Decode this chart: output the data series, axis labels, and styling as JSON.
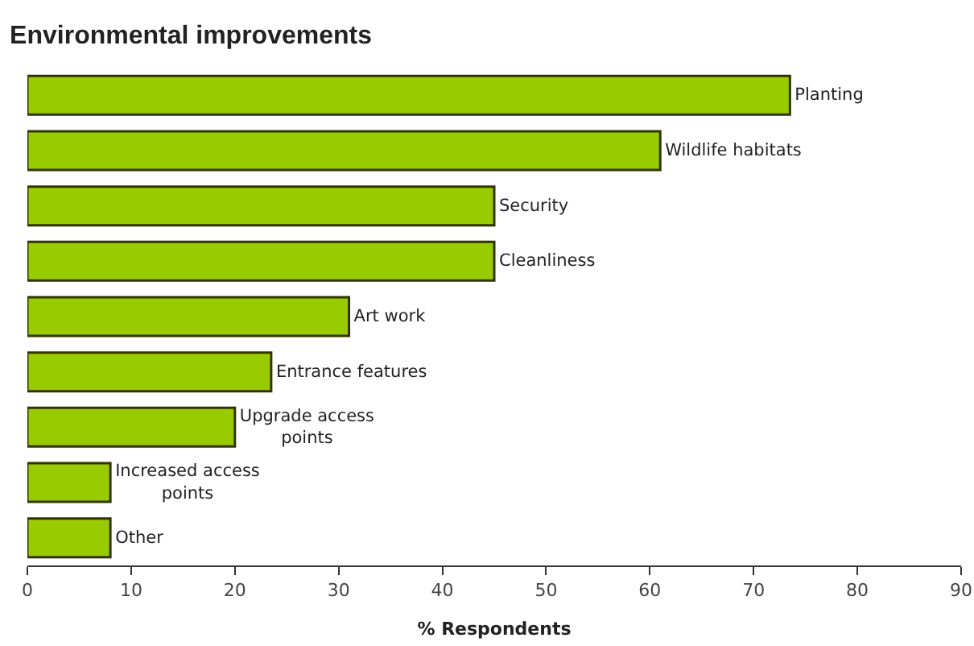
{
  "chart_data": {
    "type": "bar",
    "orientation": "horizontal",
    "title": "Environmental improvements",
    "xlabel": "% Respondents",
    "categories": [
      "Planting",
      "Wildlife habitats",
      "Security",
      "Cleanliness",
      "Art work",
      "Entrance features",
      "Upgrade access points",
      "Increased access points",
      "Other"
    ],
    "values": [
      73.5,
      61,
      45,
      45,
      31,
      23.5,
      20,
      8,
      8
    ],
    "color": "#99cc00",
    "xlim": [
      0,
      90
    ],
    "xticks": [
      0,
      10,
      20,
      30,
      40,
      50,
      60,
      70,
      80,
      90
    ],
    "grid": false,
    "tick_labels": "x"
  }
}
